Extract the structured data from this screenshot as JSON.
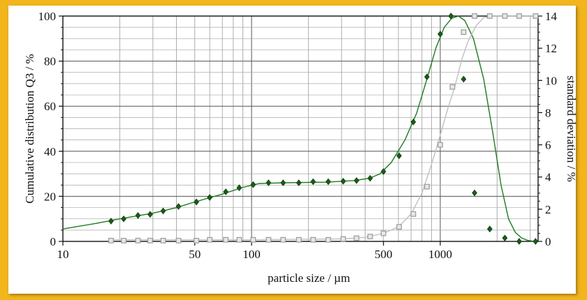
{
  "chart_data": {
    "type": "line",
    "title": "",
    "xlabel": "particle size / µm",
    "ylabel_left": "Cumulative distribution Q3 / %",
    "ylabel_right": "standard deviation / %",
    "x_scale": "log",
    "xlim": [
      10,
      3300
    ],
    "ylim_left": [
      0,
      100
    ],
    "ylim_right": [
      0,
      14
    ],
    "x_tick_labels": [
      {
        "value": 10,
        "label": "10"
      },
      {
        "value": 50,
        "label": "50"
      },
      {
        "value": 100,
        "label": "100"
      },
      {
        "value": 500,
        "label": "500"
      },
      {
        "value": 1000,
        "label": "1000"
      }
    ],
    "y_left_ticks": [
      0,
      20,
      40,
      60,
      80,
      100
    ],
    "y_right_ticks": [
      0,
      2,
      4,
      6,
      8,
      10,
      12,
      14
    ],
    "grid": true,
    "legend": "none",
    "series": [
      {
        "axis": "left",
        "color": "#1e7a1e",
        "marker": "diamond",
        "marker_color": "#1a5c1a",
        "curve": [
          [
            10,
            5.5
          ],
          [
            15,
            8
          ],
          [
            20,
            10
          ],
          [
            30,
            12.5
          ],
          [
            40,
            15
          ],
          [
            50,
            17.5
          ],
          [
            70,
            21
          ],
          [
            90,
            24
          ],
          [
            110,
            25.7
          ],
          [
            150,
            26
          ],
          [
            250,
            26.3
          ],
          [
            350,
            27
          ],
          [
            420,
            28
          ],
          [
            480,
            30
          ],
          [
            550,
            35
          ],
          [
            650,
            45
          ],
          [
            750,
            57
          ],
          [
            850,
            72
          ],
          [
            950,
            86
          ],
          [
            1050,
            95
          ],
          [
            1150,
            99
          ],
          [
            1250,
            100
          ],
          [
            1350,
            98
          ],
          [
            1500,
            90
          ],
          [
            1700,
            72
          ],
          [
            1900,
            48
          ],
          [
            2100,
            25
          ],
          [
            2300,
            10
          ],
          [
            2500,
            4
          ],
          [
            2700,
            1.5
          ],
          [
            2900,
            0.5
          ],
          [
            3100,
            0.1
          ],
          [
            3300,
            0
          ]
        ],
        "points": [
          [
            18,
            9
          ],
          [
            21,
            10
          ],
          [
            25,
            11.5
          ],
          [
            29,
            12
          ],
          [
            34,
            13.5
          ],
          [
            41,
            15.5
          ],
          [
            51,
            17.5
          ],
          [
            60,
            19.5
          ],
          [
            73,
            22
          ],
          [
            86,
            23.8
          ],
          [
            102,
            25.2
          ],
          [
            123,
            26
          ],
          [
            147,
            26
          ],
          [
            178,
            26
          ],
          [
            212,
            26.5
          ],
          [
            255,
            26.5
          ],
          [
            306,
            26.7
          ],
          [
            360,
            27
          ],
          [
            425,
            28
          ],
          [
            500,
            31
          ],
          [
            605,
            38
          ],
          [
            720,
            53
          ],
          [
            850,
            73
          ],
          [
            1000,
            92
          ],
          [
            1140,
            100
          ],
          [
            1330,
            72
          ],
          [
            1520,
            21.5
          ],
          [
            1830,
            5.5
          ],
          [
            2200,
            1.5
          ],
          [
            2620,
            0
          ],
          [
            3200,
            0
          ]
        ]
      },
      {
        "axis": "right",
        "color": "#c0c0c0",
        "marker": "square",
        "marker_color": "#9a9a9a",
        "curve": [
          [
            18,
            0.1
          ],
          [
            100,
            0.1
          ],
          [
            300,
            0.15
          ],
          [
            400,
            0.25
          ],
          [
            500,
            0.5
          ],
          [
            600,
            0.9
          ],
          [
            700,
            1.7
          ],
          [
            800,
            3.0
          ],
          [
            900,
            4.8
          ],
          [
            1000,
            6.6
          ],
          [
            1100,
            8.3
          ],
          [
            1200,
            9.7
          ],
          [
            1300,
            11.3
          ],
          [
            1400,
            12.4
          ],
          [
            1550,
            13.4
          ],
          [
            1700,
            13.9
          ],
          [
            1900,
            14
          ],
          [
            3300,
            14
          ]
        ],
        "points": [
          [
            18,
            0.05
          ],
          [
            21,
            0.05
          ],
          [
            25,
            0.05
          ],
          [
            29,
            0.05
          ],
          [
            34,
            0.05
          ],
          [
            41,
            0.05
          ],
          [
            51,
            0.05
          ],
          [
            60,
            0.1
          ],
          [
            73,
            0.1
          ],
          [
            86,
            0.1
          ],
          [
            102,
            0.1
          ],
          [
            123,
            0.1
          ],
          [
            147,
            0.1
          ],
          [
            178,
            0.1
          ],
          [
            212,
            0.1
          ],
          [
            255,
            0.1
          ],
          [
            306,
            0.15
          ],
          [
            360,
            0.2
          ],
          [
            425,
            0.3
          ],
          [
            500,
            0.5
          ],
          [
            605,
            0.9
          ],
          [
            720,
            1.7
          ],
          [
            850,
            3.4
          ],
          [
            1000,
            6.0
          ],
          [
            1160,
            9.6
          ],
          [
            1330,
            13.0
          ],
          [
            1520,
            14
          ],
          [
            1830,
            14
          ],
          [
            2200,
            14
          ],
          [
            2620,
            14
          ],
          [
            3200,
            14
          ]
        ]
      }
    ]
  }
}
